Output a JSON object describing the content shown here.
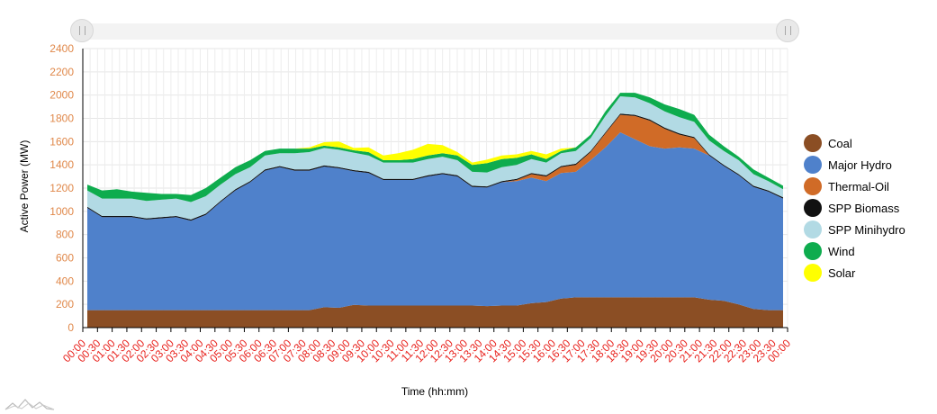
{
  "chart_data": {
    "type": "area",
    "stacked": true,
    "xlabel": "Time (hh:mm)",
    "ylabel": "Active Power (MW)",
    "ylim": [
      0,
      2400
    ],
    "yticks": [
      0,
      200,
      400,
      600,
      800,
      1000,
      1200,
      1400,
      1600,
      1800,
      2000,
      2200,
      2400
    ],
    "grid": true,
    "legend_position": "right",
    "x_tick_labels": [
      "00:00",
      "00:30",
      "01:00",
      "01:30",
      "02:00",
      "02:30",
      "03:00",
      "03:30",
      "04:00",
      "04:30",
      "05:00",
      "05:30",
      "06:00",
      "06:30",
      "07:00",
      "07:30",
      "08:00",
      "08:30",
      "09:00",
      "09:30",
      "10:00",
      "10:30",
      "11:00",
      "11:30",
      "12:00",
      "12:30",
      "13:00",
      "13:30",
      "14:00",
      "14:30",
      "15:00",
      "15:30",
      "16:00",
      "16:30",
      "17:00",
      "17:30",
      "18:00",
      "18:30",
      "19:00",
      "19:30",
      "20:00",
      "20:30",
      "21:00",
      "21:30",
      "22:00",
      "22:30",
      "23:00",
      "23:30",
      "00:00"
    ],
    "x": [
      "00:00",
      "00:30",
      "01:00",
      "01:30",
      "02:00",
      "02:30",
      "03:00",
      "03:30",
      "04:00",
      "04:30",
      "05:00",
      "05:30",
      "06:00",
      "06:30",
      "07:00",
      "07:30",
      "08:00",
      "08:30",
      "09:00",
      "09:30",
      "10:00",
      "10:30",
      "11:00",
      "11:30",
      "12:00",
      "12:30",
      "13:00",
      "13:30",
      "14:00",
      "14:30",
      "15:00",
      "15:30",
      "16:00",
      "16:30",
      "17:00",
      "17:30",
      "18:00",
      "18:30",
      "19:00",
      "19:30",
      "20:00",
      "20:30",
      "21:00",
      "21:30",
      "22:00",
      "22:30",
      "23:00",
      "23:30"
    ],
    "series": [
      {
        "name": "Coal",
        "color": "#8b4e24",
        "values": [
          150,
          150,
          150,
          150,
          150,
          150,
          150,
          150,
          150,
          150,
          150,
          150,
          150,
          150,
          150,
          150,
          175,
          170,
          195,
          190,
          190,
          190,
          190,
          190,
          190,
          190,
          190,
          185,
          190,
          190,
          210,
          220,
          250,
          260,
          260,
          260,
          260,
          260,
          260,
          260,
          260,
          260,
          240,
          230,
          200,
          160,
          150,
          150
        ]
      },
      {
        "name": "Major Hydro",
        "color": "#4f81cb",
        "values": [
          880,
          800,
          800,
          800,
          780,
          790,
          800,
          770,
          820,
          930,
          1030,
          1100,
          1200,
          1230,
          1200,
          1200,
          1210,
          1200,
          1150,
          1140,
          1080,
          1080,
          1080,
          1110,
          1130,
          1110,
          1020,
          1020,
          1060,
          1070,
          1080,
          1040,
          1080,
          1080,
          1180,
          1290,
          1420,
          1360,
          1300,
          1280,
          1290,
          1280,
          1240,
          1160,
          1110,
          1050,
          1020,
          960
        ]
      },
      {
        "name": "Thermal-Oil",
        "color": "#d06b27",
        "values": [
          0,
          0,
          0,
          0,
          0,
          0,
          0,
          0,
          0,
          0,
          0,
          0,
          0,
          0,
          0,
          0,
          0,
          0,
          0,
          0,
          0,
          0,
          0,
          0,
          0,
          0,
          0,
          0,
          0,
          10,
          30,
          40,
          50,
          60,
          70,
          120,
          150,
          200,
          220,
          170,
          110,
          90,
          0,
          0,
          0,
          0,
          0,
          0
        ]
      },
      {
        "name": "SPP Biomass",
        "color": "#111111",
        "values": [
          10,
          10,
          10,
          10,
          10,
          10,
          10,
          10,
          10,
          10,
          10,
          10,
          10,
          10,
          10,
          10,
          10,
          10,
          10,
          10,
          10,
          10,
          10,
          10,
          10,
          10,
          10,
          10,
          10,
          10,
          10,
          10,
          10,
          10,
          10,
          10,
          10,
          10,
          10,
          10,
          10,
          10,
          10,
          10,
          10,
          10,
          10,
          10
        ]
      },
      {
        "name": "SPP Minihydro",
        "color": "#b2dae4",
        "values": [
          140,
          150,
          150,
          150,
          150,
          150,
          150,
          150,
          150,
          140,
          130,
          120,
          120,
          110,
          140,
          150,
          150,
          150,
          150,
          140,
          140,
          140,
          140,
          140,
          140,
          130,
          120,
          120,
          120,
          120,
          120,
          110,
          110,
          110,
          110,
          140,
          150,
          150,
          140,
          140,
          140,
          130,
          120,
          120,
          120,
          100,
          80,
          70
        ]
      },
      {
        "name": "Wind",
        "color": "#0eac4e",
        "values": [
          50,
          70,
          80,
          60,
          70,
          50,
          40,
          60,
          70,
          60,
          60,
          60,
          40,
          40,
          40,
          30,
          20,
          20,
          20,
          30,
          20,
          20,
          30,
          30,
          30,
          40,
          60,
          80,
          70,
          60,
          40,
          30,
          20,
          30,
          30,
          40,
          30,
          40,
          50,
          60,
          70,
          60,
          50,
          40,
          30,
          40,
          30,
          30
        ]
      },
      {
        "name": "Solar",
        "color": "#ffff00",
        "values": [
          0,
          0,
          0,
          0,
          0,
          0,
          0,
          0,
          0,
          0,
          0,
          0,
          0,
          0,
          0,
          10,
          30,
          50,
          20,
          40,
          40,
          60,
          80,
          100,
          70,
          30,
          20,
          30,
          30,
          30,
          30,
          40,
          20,
          0,
          0,
          0,
          0,
          0,
          0,
          0,
          0,
          0,
          0,
          0,
          0,
          0,
          0,
          0
        ]
      }
    ]
  }
}
